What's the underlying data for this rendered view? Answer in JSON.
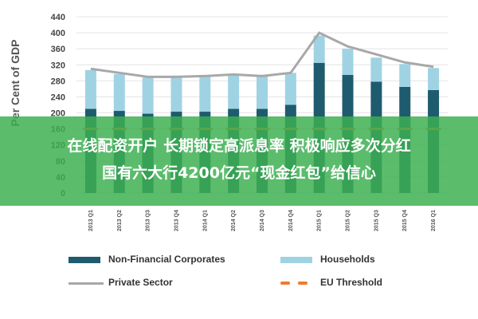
{
  "chart_data": {
    "type": "bar",
    "stacked": true,
    "ylabel": "Per Cent of GDP",
    "ylim": [
      0,
      440
    ],
    "yticks": [
      0,
      40,
      80,
      120,
      160,
      200,
      240,
      280,
      320,
      360,
      400,
      440
    ],
    "categories": [
      "2013 Q1",
      "2013 Q2",
      "2013 Q3",
      "2013 Q4",
      "2014 Q1",
      "2014 Q2",
      "2014 Q3",
      "2014 Q4",
      "2015 Q1",
      "2015 Q2",
      "2015 Q3",
      "2015 Q4",
      "2016 Q1"
    ],
    "series": [
      {
        "name": "Non-Financial Corporates",
        "type": "bar",
        "color": "#1f5b6e",
        "values": [
          210,
          205,
          198,
          203,
          203,
          210,
          210,
          220,
          325,
          295,
          278,
          265,
          257
        ]
      },
      {
        "name": "Households",
        "type": "bar",
        "color": "#9fd3e3",
        "values": [
          97,
          92,
          90,
          90,
          90,
          85,
          85,
          80,
          68,
          65,
          60,
          57,
          55
        ]
      },
      {
        "name": "Private Sector",
        "type": "line",
        "color": "#a8a8a8",
        "values": [
          310,
          300,
          290,
          290,
          292,
          296,
          292,
          300,
          400,
          366,
          346,
          326,
          315
        ]
      },
      {
        "name": "EU Threshold",
        "type": "dashed-line",
        "color": "#f07b2c",
        "values": [
          160,
          160,
          160,
          160,
          160,
          160,
          160,
          160,
          160,
          160,
          160,
          160,
          160
        ]
      }
    ],
    "legend_position": "bottom",
    "grid": true
  },
  "overlay": {
    "line1": "在线配资开户 长期锁定高派息率 积极响应多次分红",
    "line2": "国有六大行4200亿元“现金红包”给信心"
  }
}
